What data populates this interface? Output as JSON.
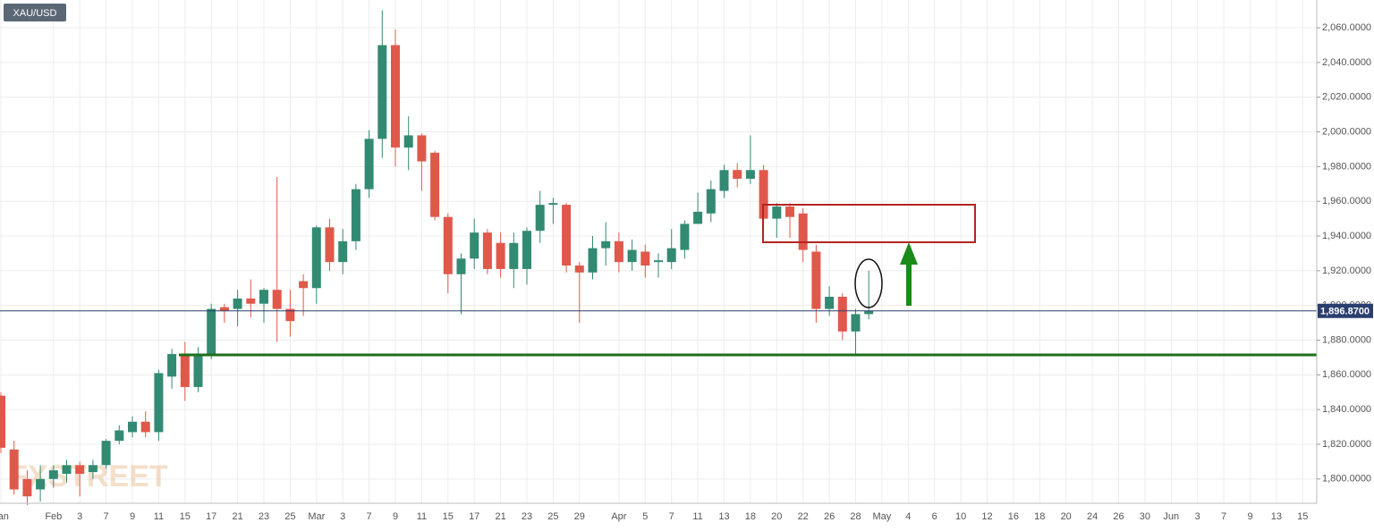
{
  "chart_data": {
    "type": "candlestick",
    "symbol": "XAU/USD",
    "watermark": "FXSTREET",
    "categories": [
      "Jan",
      null,
      null,
      null,
      "Feb",
      null,
      "3",
      null,
      "7",
      null,
      "9",
      null,
      "11",
      null,
      "15",
      null,
      "17",
      null,
      "21",
      null,
      "23",
      null,
      "25",
      null,
      "Mar",
      null,
      "3",
      null,
      "7",
      null,
      "9",
      null,
      "11",
      null,
      "15",
      null,
      "17",
      null,
      "21",
      null,
      "23",
      null,
      "25",
      null,
      "29",
      null,
      null,
      "Apr",
      null,
      "5",
      null,
      "7",
      null,
      "11",
      null,
      "13",
      null,
      "18",
      null,
      "20",
      null,
      "22",
      null,
      "26",
      null,
      "28",
      null,
      "May",
      null,
      "4",
      null,
      "6",
      null,
      "10",
      null,
      "12",
      null,
      "16",
      null,
      "18",
      null,
      "20",
      null,
      "24",
      null,
      "26",
      null,
      "30",
      null,
      "Jun",
      null,
      "3",
      null,
      "7",
      null,
      "9",
      null,
      "13",
      null,
      "15"
    ],
    "open": [
      1848,
      1817,
      1800,
      1794,
      1800,
      1803,
      1808,
      1804,
      1808,
      1822,
      1827,
      1833,
      1827,
      1859,
      1872,
      1853,
      1872,
      1899,
      1898,
      1904,
      1901,
      1909,
      1898,
      1914,
      1910,
      1945,
      1925,
      1937,
      1967,
      1996,
      2050,
      1991,
      1998,
      1988,
      1951,
      1918,
      1927,
      1942,
      1936,
      1921,
      1921,
      1943,
      1958,
      1958,
      1923,
      1919,
      1933,
      1937,
      1925,
      1931,
      1925,
      1925,
      1932,
      1947,
      1953,
      1966,
      1978,
      1973,
      1978,
      1950,
      1957,
      1953,
      1931,
      1898,
      1905,
      1885,
      1895,
      null,
      null,
      null,
      null,
      null,
      null,
      null,
      null,
      null,
      null,
      null,
      null,
      null,
      null,
      null,
      null,
      null,
      null,
      null,
      null,
      null,
      null,
      null,
      null,
      null,
      null,
      null,
      null,
      null,
      null,
      null,
      null,
      null
    ],
    "high": [
      1850,
      1822,
      1805,
      1808,
      1808,
      1811,
      1810,
      1811,
      1823,
      1831,
      1836,
      1839,
      1863,
      1875,
      1879,
      1876,
      1901,
      1901,
      1909,
      1915,
      1910,
      1974,
      1909,
      1918,
      1946,
      1950,
      1944,
      1970,
      2001,
      2070,
      2059,
      2009,
      1999,
      1989,
      1953,
      1930,
      1950,
      1944,
      1942,
      1942,
      1945,
      1966,
      1962,
      1959,
      1925,
      1940,
      1948,
      1942,
      1938,
      1935,
      1930,
      1944,
      1949,
      1965,
      1972,
      1981,
      1982,
      1998,
      1981,
      1959,
      1959,
      1956,
      1935,
      1911,
      1907,
      1898,
      1920,
      null,
      null,
      null,
      null,
      null,
      null,
      null,
      null,
      null,
      null,
      null,
      null,
      null,
      null,
      null,
      null,
      null,
      null,
      null,
      null,
      null,
      null,
      null,
      null,
      null,
      null,
      null,
      null,
      null,
      null,
      null,
      null,
      null
    ],
    "low": [
      1815,
      1791,
      1785,
      1787,
      1795,
      1798,
      1790,
      1800,
      1806,
      1820,
      1824,
      1824,
      1822,
      1852,
      1845,
      1850,
      1869,
      1890,
      1888,
      1893,
      1890,
      1879,
      1882,
      1894,
      1901,
      1920,
      1918,
      1932,
      1962,
      1985,
      1980,
      1978,
      1966,
      1949,
      1907,
      1895,
      1921,
      1918,
      1916,
      1910,
      1912,
      1936,
      1947,
      1919,
      1890,
      1915,
      1923,
      1919,
      1920,
      1916,
      1916,
      1921,
      1927,
      1947,
      1948,
      1962,
      1968,
      1970,
      1948,
      1939,
      1939,
      1925,
      1890,
      1894,
      1880,
      1872,
      1892,
      null,
      null,
      null,
      null,
      null,
      null,
      null,
      null,
      null,
      null,
      null,
      null,
      null,
      null,
      null,
      null,
      null,
      null,
      null,
      null,
      null,
      null,
      null,
      null,
      null,
      null,
      null,
      null,
      null,
      null,
      null,
      null,
      null
    ],
    "close": [
      1818,
      1794,
      1790,
      1800,
      1805,
      1808,
      1803,
      1808,
      1822,
      1828,
      1833,
      1827,
      1861,
      1872,
      1853,
      1872,
      1898,
      1897,
      1904,
      1901,
      1909,
      1898,
      1891,
      1910,
      1945,
      1925,
      1937,
      1967,
      1996,
      2050,
      1991,
      1998,
      1983,
      1951,
      1918,
      1927,
      1942,
      1921,
      1921,
      1936,
      1943,
      1958,
      1959,
      1923,
      1919,
      1933,
      1937,
      1925,
      1932,
      1923,
      1926,
      1933,
      1947,
      1954,
      1967,
      1978,
      1973,
      1978,
      1950,
      1957,
      1951,
      1932,
      1898,
      1905,
      1885,
      1895,
      1897,
      null,
      null,
      null,
      null,
      null,
      null,
      null,
      null,
      null,
      null,
      null,
      null,
      null,
      null,
      null,
      null,
      null,
      null,
      null,
      null,
      null,
      null,
      null,
      null,
      null,
      null,
      null,
      null,
      null,
      null,
      null,
      null,
      null
    ],
    "up_color": "#338a72",
    "down_color": "#e0584a",
    "last_price": {
      "value": 1896.87,
      "label": "1,896.8700"
    },
    "ylim": [
      1786,
      2076
    ],
    "yticks": [
      {
        "value": 1800,
        "label": "1,800.0000"
      },
      {
        "value": 1820,
        "label": "1,820.0000"
      },
      {
        "value": 1840,
        "label": "1,840.0000"
      },
      {
        "value": 1860,
        "label": "1,860.0000"
      },
      {
        "value": 1880,
        "label": "1,880.0000"
      },
      {
        "value": 1900,
        "label": "1,900.0000"
      },
      {
        "value": 1920,
        "label": "1,920.0000"
      },
      {
        "value": 1940,
        "label": "1,940.0000"
      },
      {
        "value": 1960,
        "label": "1,960.0000"
      },
      {
        "value": 1980,
        "label": "1,980.0000"
      },
      {
        "value": 2000,
        "label": "2,000.0000"
      },
      {
        "value": 2020,
        "label": "2,020.0000"
      },
      {
        "value": 2040,
        "label": "2,040.0000"
      },
      {
        "value": 2060,
        "label": "2,060.0000"
      }
    ],
    "grid": true
  }
}
